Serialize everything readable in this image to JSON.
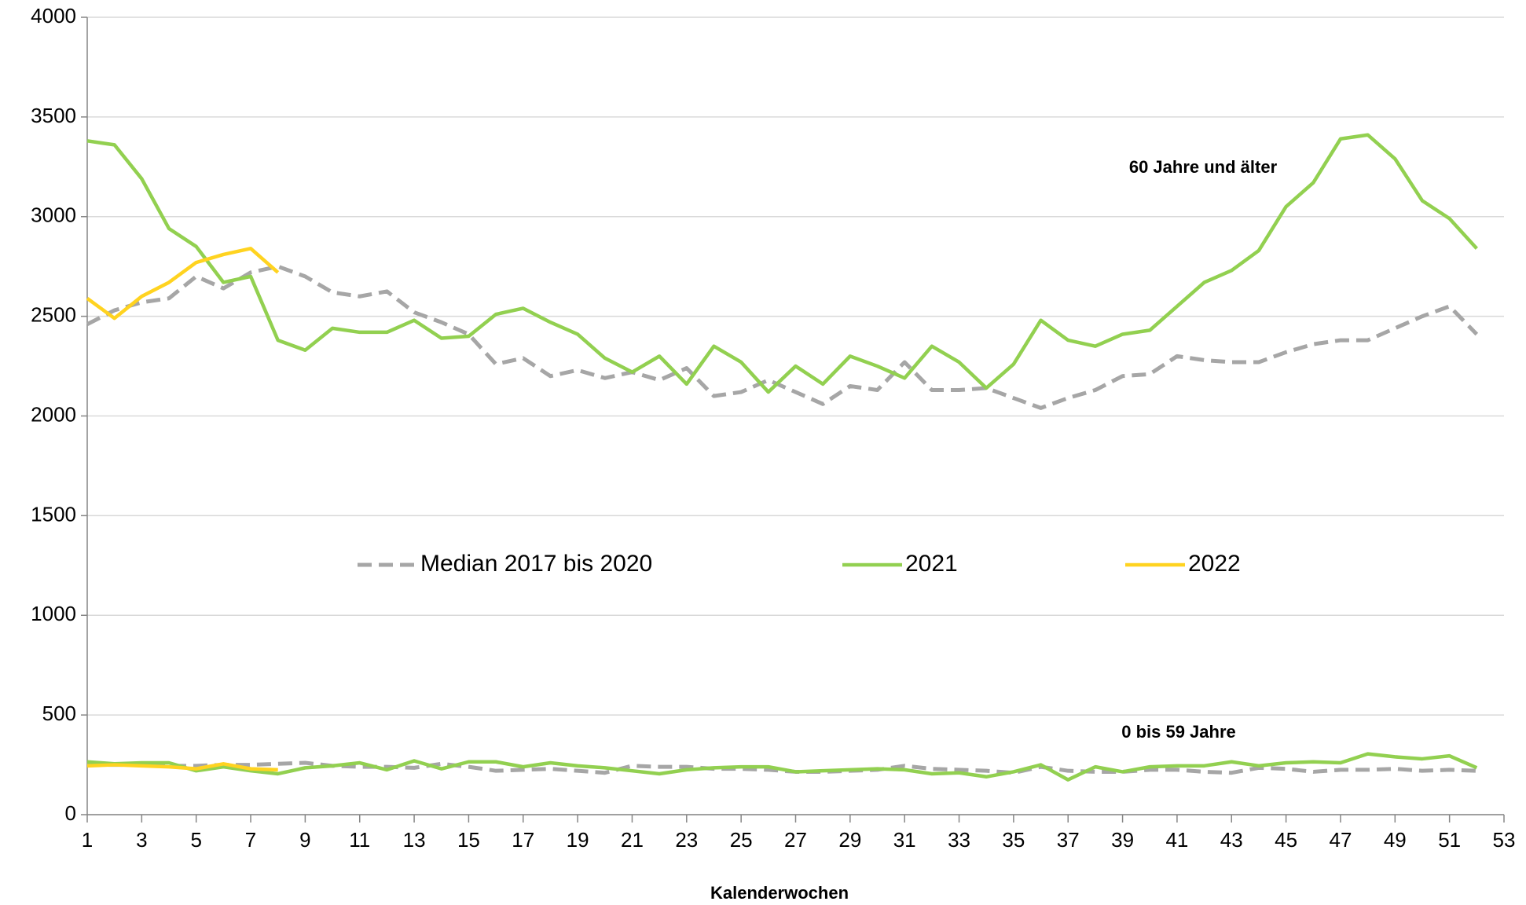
{
  "chart_data": {
    "type": "line",
    "axis_title": "Kalenderwochen",
    "groups": [
      "60 Jahre und älter",
      "0 bis 59 Jahre"
    ],
    "x": [
      1,
      2,
      3,
      4,
      5,
      6,
      7,
      8,
      9,
      10,
      11,
      12,
      13,
      14,
      15,
      16,
      17,
      18,
      19,
      20,
      21,
      22,
      23,
      24,
      25,
      26,
      27,
      28,
      29,
      30,
      31,
      32,
      33,
      34,
      35,
      36,
      37,
      38,
      39,
      40,
      41,
      42,
      43,
      44,
      45,
      46,
      47,
      48,
      49,
      50,
      51,
      52
    ],
    "xlim": [
      1,
      53
    ],
    "xticks": [
      1,
      3,
      5,
      7,
      9,
      11,
      13,
      15,
      17,
      19,
      21,
      23,
      25,
      27,
      29,
      31,
      33,
      35,
      37,
      39,
      41,
      43,
      45,
      47,
      49,
      51,
      53
    ],
    "ylim": [
      0,
      4000
    ],
    "yticks": [
      0,
      500,
      1000,
      1500,
      2000,
      2500,
      3000,
      3500,
      4000
    ],
    "grid": true,
    "legend": "center",
    "series": [
      {
        "name": "Median 2017 bis 2020",
        "color": "#a6a6a6",
        "dashed": true,
        "values": [
          [
            2460,
            2530,
            2570,
            2590,
            2700,
            2640,
            2720,
            2750,
            2700,
            2620,
            2600,
            2625,
            2520,
            2470,
            2410,
            2260,
            2290,
            2200,
            2230,
            2190,
            2220,
            2180,
            2240,
            2100,
            2120,
            2180,
            2120,
            2060,
            2150,
            2130,
            2270,
            2130,
            2130,
            2140,
            2090,
            2040,
            2090,
            2130,
            2200,
            2210,
            2300,
            2280,
            2270,
            2270,
            2320,
            2360,
            2380,
            2380,
            2440,
            2500,
            2550,
            2410
          ],
          [
            250,
            250,
            250,
            245,
            245,
            250,
            250,
            255,
            260,
            245,
            240,
            240,
            235,
            255,
            240,
            220,
            225,
            230,
            220,
            210,
            245,
            240,
            240,
            230,
            230,
            225,
            215,
            215,
            220,
            225,
            245,
            230,
            225,
            220,
            210,
            240,
            220,
            215,
            215,
            225,
            225,
            215,
            210,
            235,
            230,
            215,
            225,
            225,
            230,
            220,
            225,
            220
          ]
        ]
      },
      {
        "name": "2021",
        "color": "#92d050",
        "dashed": false,
        "values": [
          [
            3380,
            3360,
            3190,
            2940,
            2850,
            2670,
            2700,
            2380,
            2330,
            2440,
            2420,
            2420,
            2480,
            2390,
            2400,
            2510,
            2540,
            2470,
            2410,
            2290,
            2220,
            2300,
            2160,
            2350,
            2270,
            2120,
            2250,
            2160,
            2300,
            2250,
            2190,
            2350,
            2270,
            2140,
            2260,
            2480,
            2380,
            2350,
            2410,
            2430,
            2550,
            2670,
            2730,
            2830,
            3050,
            3170,
            3390,
            3410,
            3290,
            3080,
            2990,
            2840
          ],
          [
            265,
            255,
            260,
            260,
            220,
            240,
            220,
            205,
            235,
            245,
            260,
            225,
            270,
            230,
            265,
            265,
            240,
            260,
            245,
            235,
            220,
            205,
            225,
            235,
            240,
            240,
            215,
            220,
            225,
            230,
            225,
            205,
            210,
            190,
            215,
            250,
            175,
            240,
            215,
            240,
            245,
            245,
            265,
            245,
            260,
            265,
            260,
            305,
            290,
            280,
            295,
            235
          ]
        ]
      },
      {
        "name": "2022",
        "color": "#ffd320",
        "dashed": false,
        "values": [
          [
            2590,
            2490,
            2600,
            2670,
            2770,
            2810,
            2840,
            2720,
            null,
            null,
            null,
            null,
            null,
            null,
            null,
            null,
            null,
            null,
            null,
            null,
            null,
            null,
            null,
            null,
            null,
            null,
            null,
            null,
            null,
            null,
            null,
            null,
            null,
            null,
            null,
            null,
            null,
            null,
            null,
            null,
            null,
            null,
            null,
            null,
            null,
            null,
            null,
            null,
            null,
            null,
            null,
            null
          ],
          [
            245,
            250,
            245,
            240,
            230,
            255,
            230,
            225,
            null,
            null,
            null,
            null,
            null,
            null,
            null,
            null,
            null,
            null,
            null,
            null,
            null,
            null,
            null,
            null,
            null,
            null,
            null,
            null,
            null,
            null,
            null,
            null,
            null,
            null,
            null,
            null,
            null,
            null,
            null,
            null,
            null,
            null,
            null,
            null,
            null,
            null,
            null,
            null,
            null,
            null,
            null,
            null
          ]
        ]
      }
    ]
  }
}
